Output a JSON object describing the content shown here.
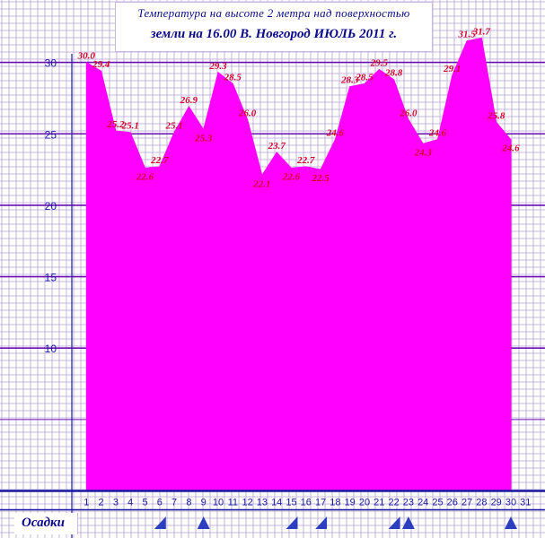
{
  "title": {
    "line1": "Температура на высоте 2 метра над поверхностью",
    "line2": "земли на 16.00 В. Новгород ИЮЛЬ 2011 г."
  },
  "precipitation_label": "Осадки",
  "colors": {
    "area_fill": "#FF00FF",
    "grid_minor": "#B9A3D8",
    "grid_major": "#6A0FB0",
    "axis": "#1A1AA0",
    "data_label": "#D0002A",
    "tick_label": "#1A1AA0",
    "precip_marker": "#2B3FBF"
  },
  "chart_data": {
    "type": "area",
    "x": [
      1,
      2,
      3,
      4,
      5,
      6,
      7,
      8,
      9,
      10,
      11,
      12,
      13,
      14,
      15,
      16,
      17,
      18,
      19,
      20,
      21,
      22,
      23,
      24,
      25,
      26,
      27,
      28,
      29,
      30
    ],
    "values": [
      30.0,
      29.4,
      25.2,
      25.1,
      22.6,
      22.7,
      25.1,
      26.9,
      25.3,
      29.3,
      28.5,
      26.0,
      22.1,
      23.7,
      22.6,
      22.7,
      22.5,
      24.6,
      28.3,
      28.5,
      29.5,
      28.8,
      26.0,
      24.3,
      24.6,
      29.1,
      31.5,
      31.7,
      25.8,
      24.6
    ],
    "labels": [
      "30.0",
      "29.4",
      "25.2",
      "25.1",
      "22.6",
      "22.7",
      "25.1",
      "26.9",
      "25.3",
      "29.3",
      "28.5",
      "26.0",
      "22.1",
      "23.7",
      "22.6",
      "22.7",
      "22.5",
      "24.6",
      "28.3",
      "28.5",
      "29.5",
      "28.8",
      "26.0",
      "24.3",
      "24.6",
      "29.1",
      "31.5",
      "31.7",
      "25.8",
      "24.6"
    ],
    "xticks": [
      "1",
      "2",
      "3",
      "4",
      "5",
      "6",
      "7",
      "8",
      "9",
      "10",
      "11",
      "12",
      "13",
      "14",
      "15",
      "16",
      "17",
      "18",
      "19",
      "20",
      "21",
      "22",
      "23",
      "24",
      "25",
      "26",
      "27",
      "28",
      "29",
      "30",
      "31"
    ],
    "yticks": [
      "10",
      "15",
      "20",
      "25",
      "30"
    ],
    "ylim": [
      -0.2,
      33.5
    ],
    "xlim": [
      0,
      32
    ],
    "grid": true,
    "precipitation_days": [
      6,
      9,
      15,
      17,
      22,
      23,
      30
    ],
    "precipitation_marker_types": [
      "right-triangle",
      "triangle",
      "right-triangle",
      "right-triangle",
      "right-triangle",
      "triangle",
      "triangle"
    ]
  }
}
